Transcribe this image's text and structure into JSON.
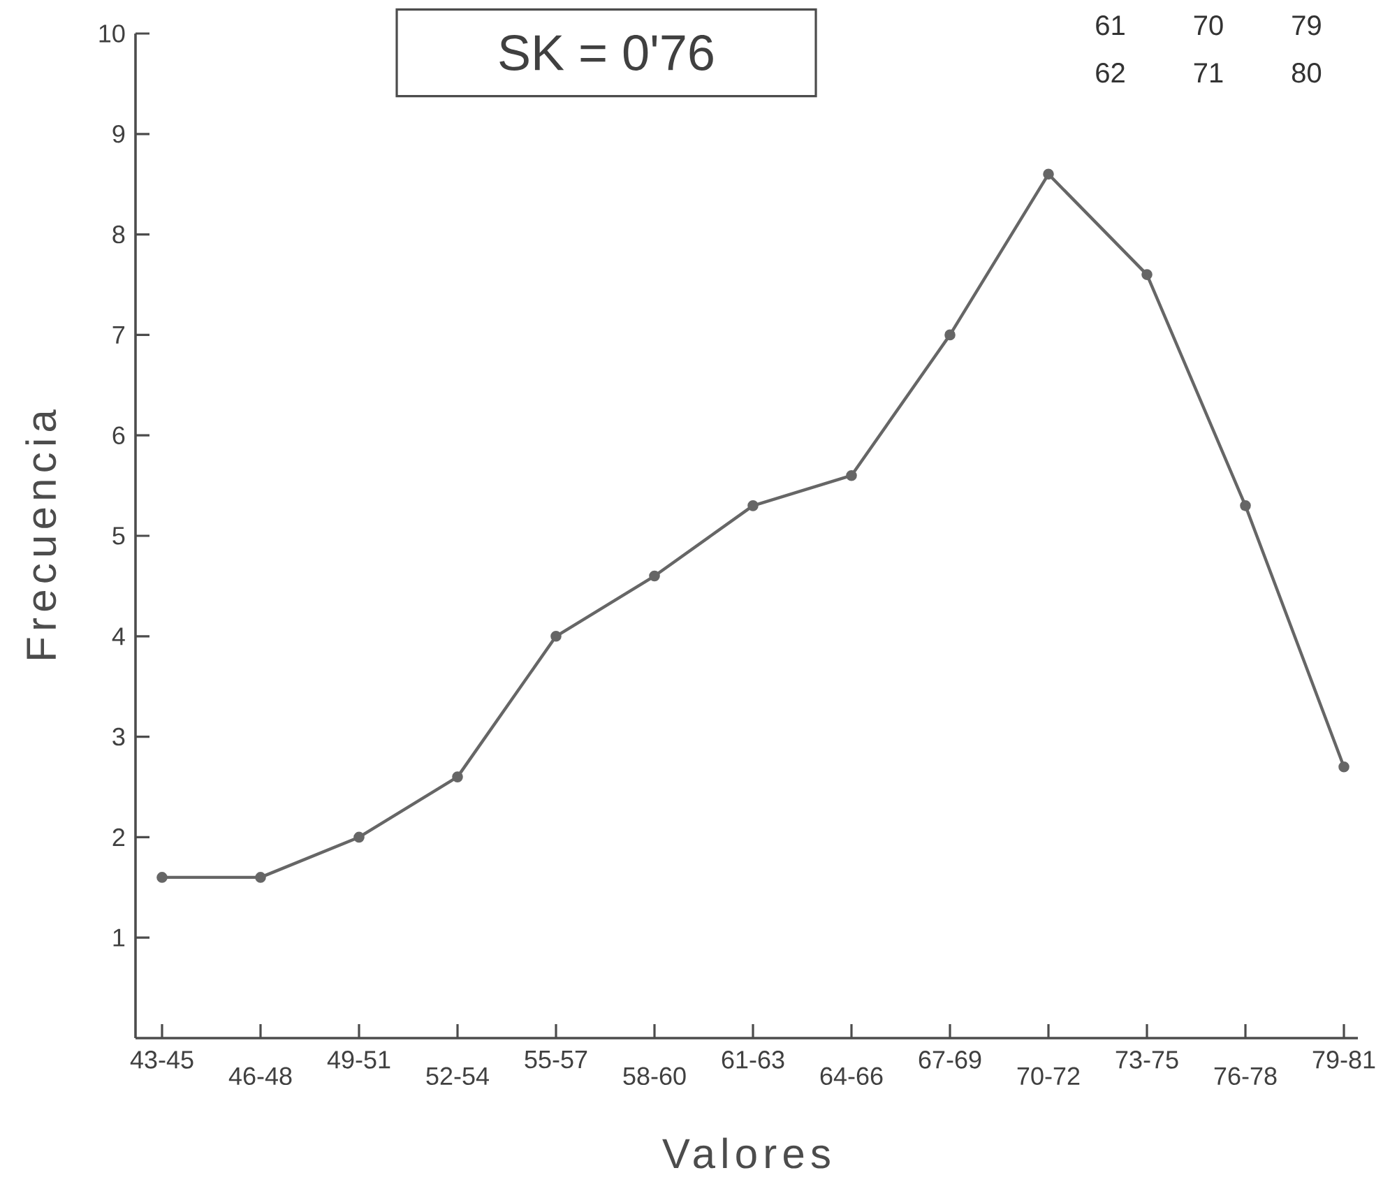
{
  "chart_data": {
    "type": "line",
    "xlabel": "Valores",
    "ylabel": "Frecuencia",
    "categories": [
      "43-45",
      "46-48",
      "49-51",
      "52-54",
      "55-57",
      "58-60",
      "61-63",
      "64-66",
      "67-69",
      "70-72",
      "73-75",
      "76-78",
      "79-81"
    ],
    "values": [
      1.6,
      1.6,
      2.0,
      2.6,
      4.0,
      4.6,
      5.3,
      5.6,
      7.0,
      8.6,
      7.6,
      5.3,
      2.7
    ],
    "color": "#666666",
    "marker": "circle",
    "line_style": "solid",
    "ylim": [
      0,
      10
    ],
    "yticks": [
      1,
      2,
      3,
      4,
      5,
      6,
      7,
      8,
      9,
      10
    ],
    "annotations": [
      "SK = 0'76",
      "61 70 79",
      "62 71 80"
    ]
  }
}
